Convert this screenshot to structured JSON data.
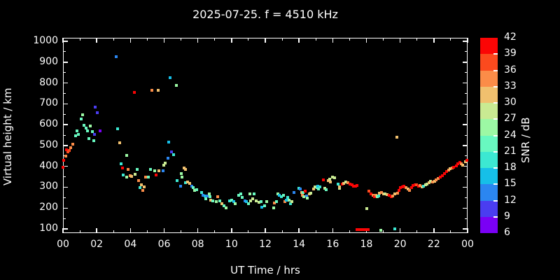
{
  "header": {
    "title": "2025-07-25. f = 4510 kHz"
  },
  "colorbar": {
    "label": "SNR / dB",
    "ticks": [
      6,
      9,
      12,
      15,
      18,
      21,
      24,
      27,
      30,
      33,
      36,
      39,
      42
    ]
  },
  "chart_data": {
    "type": "scatter",
    "title": "2025-07-25. f = 4510 kHz",
    "xlabel": "UT Time / hrs",
    "ylabel": "Virtual height / km",
    "xlim": [
      0,
      24
    ],
    "ylim": [
      80,
      1017
    ],
    "grid": false,
    "x_ticks": [
      0,
      2,
      4,
      6,
      8,
      10,
      12,
      14,
      16,
      18,
      20,
      22,
      24
    ],
    "x_tick_labels": [
      "00",
      "02",
      "04",
      "06",
      "08",
      "10",
      "12",
      "14",
      "16",
      "18",
      "20",
      "22",
      "00"
    ],
    "x_minor_ticks": [
      1,
      3,
      5,
      7,
      9,
      11,
      13,
      15,
      17,
      19,
      21,
      23
    ],
    "y_ticks": [
      100,
      200,
      300,
      400,
      500,
      600,
      700,
      800,
      900,
      1000
    ],
    "y_tick_labels": [
      "100",
      "200",
      "300",
      "400",
      "500",
      "600",
      "700",
      "800",
      "900",
      "1000"
    ],
    "y_minor_ticks": [
      150,
      250,
      350,
      450,
      550,
      650,
      750,
      850,
      950
    ],
    "snr_scale": {
      "min": 6,
      "max": 42,
      "step": 3,
      "colors": [
        "#7a00f5",
        "#4a3df0",
        "#2b86f0",
        "#16bfe8",
        "#3ce8d2",
        "#68f8c0",
        "#9cf8a4",
        "#c9ea92",
        "#f0c06e",
        "#fb8c48",
        "#fb4a1e",
        "#fb0505"
      ]
    },
    "points_format": [
      "ut_hours",
      "virtual_height_km",
      "snr_db"
    ],
    "points": [
      [
        0.02,
        397,
        41
      ],
      [
        0.05,
        428,
        41
      ],
      [
        0.17,
        450,
        34
      ],
      [
        0.21,
        481,
        41
      ],
      [
        0.3,
        468,
        38
      ],
      [
        0.38,
        475,
        38
      ],
      [
        0.45,
        490,
        34
      ],
      [
        0.58,
        507,
        34
      ],
      [
        0.76,
        546,
        22
      ],
      [
        0.83,
        571,
        22
      ],
      [
        0.9,
        555,
        22
      ],
      [
        1.07,
        629,
        22
      ],
      [
        1.18,
        649,
        25
      ],
      [
        1.25,
        597,
        22
      ],
      [
        1.35,
        585,
        22
      ],
      [
        1.46,
        571,
        22
      ],
      [
        1.53,
        532,
        22
      ],
      [
        1.6,
        594,
        25
      ],
      [
        1.74,
        566,
        22
      ],
      [
        1.81,
        524,
        22
      ],
      [
        1.85,
        552,
        10
      ],
      [
        1.92,
        685,
        10
      ],
      [
        2.02,
        658,
        10
      ],
      [
        2.22,
        571,
        7
      ],
      [
        3.17,
        926,
        13
      ],
      [
        3.23,
        582,
        19
      ],
      [
        3.38,
        513,
        31
      ],
      [
        3.44,
        413,
        19
      ],
      [
        3.52,
        391,
        41
      ],
      [
        3.58,
        358,
        19
      ],
      [
        3.76,
        350,
        25
      ],
      [
        3.78,
        452,
        25
      ],
      [
        3.87,
        385,
        34
      ],
      [
        3.97,
        355,
        34
      ],
      [
        4.08,
        352,
        31
      ],
      [
        4.25,
        754,
        41
      ],
      [
        4.27,
        363,
        28
      ],
      [
        4.42,
        385,
        22
      ],
      [
        4.48,
        333,
        34
      ],
      [
        4.56,
        298,
        19
      ],
      [
        4.66,
        311,
        31
      ],
      [
        4.73,
        284,
        34
      ],
      [
        4.8,
        302,
        31
      ],
      [
        4.9,
        350,
        34
      ],
      [
        5.08,
        350,
        22
      ],
      [
        5.19,
        385,
        22
      ],
      [
        5.29,
        765,
        34
      ],
      [
        5.43,
        380,
        25
      ],
      [
        5.52,
        359,
        41
      ],
      [
        5.66,
        765,
        31
      ],
      [
        5.68,
        380,
        31
      ],
      [
        5.94,
        378,
        13
      ],
      [
        5.98,
        405,
        28
      ],
      [
        6.05,
        416,
        28
      ],
      [
        6.22,
        441,
        13
      ],
      [
        6.29,
        516,
        16
      ],
      [
        6.37,
        826,
        16
      ],
      [
        6.44,
        468,
        10
      ],
      [
        6.57,
        455,
        19
      ],
      [
        6.71,
        787,
        25
      ],
      [
        6.75,
        333,
        19
      ],
      [
        6.96,
        306,
        13
      ],
      [
        7.03,
        364,
        25
      ],
      [
        7.05,
        350,
        25
      ],
      [
        7.17,
        394,
        31
      ],
      [
        7.26,
        386,
        31
      ],
      [
        7.28,
        322,
        19
      ],
      [
        7.4,
        325,
        31
      ],
      [
        7.51,
        320,
        31
      ],
      [
        7.62,
        306,
        13
      ],
      [
        7.72,
        298,
        22
      ],
      [
        7.82,
        284,
        25
      ],
      [
        7.93,
        289,
        22
      ],
      [
        8.21,
        276,
        19
      ],
      [
        8.32,
        262,
        13
      ],
      [
        8.42,
        258,
        16
      ],
      [
        8.49,
        245,
        22
      ],
      [
        8.56,
        258,
        13
      ],
      [
        8.66,
        269,
        25
      ],
      [
        8.7,
        256,
        22
      ],
      [
        8.77,
        239,
        31
      ],
      [
        8.9,
        236,
        22
      ],
      [
        9.11,
        231,
        25
      ],
      [
        9.18,
        254,
        34
      ],
      [
        9.32,
        236,
        22
      ],
      [
        9.43,
        222,
        31
      ],
      [
        9.53,
        211,
        22
      ],
      [
        9.67,
        200,
        25
      ],
      [
        9.9,
        236,
        19
      ],
      [
        10.02,
        239,
        22
      ],
      [
        10.13,
        231,
        16
      ],
      [
        10.22,
        222,
        25
      ],
      [
        10.43,
        262,
        22
      ],
      [
        10.55,
        269,
        22
      ],
      [
        10.64,
        251,
        22
      ],
      [
        10.78,
        236,
        13
      ],
      [
        10.88,
        231,
        16
      ],
      [
        10.99,
        222,
        22
      ],
      [
        11.1,
        267,
        25
      ],
      [
        11.13,
        236,
        28
      ],
      [
        11.27,
        243,
        28
      ],
      [
        11.34,
        267,
        22
      ],
      [
        11.48,
        233,
        28
      ],
      [
        11.62,
        228,
        28
      ],
      [
        11.76,
        231,
        22
      ],
      [
        11.8,
        203,
        16
      ],
      [
        11.97,
        211,
        22
      ],
      [
        12.08,
        231,
        25
      ],
      [
        12.49,
        200,
        25
      ],
      [
        12.52,
        224,
        34
      ],
      [
        12.66,
        231,
        22
      ],
      [
        12.73,
        267,
        25
      ],
      [
        12.82,
        262,
        16
      ],
      [
        12.94,
        256,
        19
      ],
      [
        13.08,
        262,
        22
      ],
      [
        13.15,
        231,
        34
      ],
      [
        13.25,
        239,
        16
      ],
      [
        13.33,
        251,
        19
      ],
      [
        13.43,
        239,
        25
      ],
      [
        13.5,
        222,
        19
      ],
      [
        13.56,
        231,
        28
      ],
      [
        13.7,
        276,
        13
      ],
      [
        14.01,
        294,
        19
      ],
      [
        14.09,
        291,
        13
      ],
      [
        14.15,
        276,
        31
      ],
      [
        14.19,
        262,
        34
      ],
      [
        14.26,
        276,
        22
      ],
      [
        14.28,
        256,
        25
      ],
      [
        14.37,
        280,
        41
      ],
      [
        14.43,
        258,
        13
      ],
      [
        14.48,
        247,
        25
      ],
      [
        14.61,
        267,
        31
      ],
      [
        14.7,
        272,
        28
      ],
      [
        14.85,
        291,
        31
      ],
      [
        14.96,
        302,
        28
      ],
      [
        15.07,
        297,
        22
      ],
      [
        15.12,
        305,
        16
      ],
      [
        15.17,
        291,
        22
      ],
      [
        15.24,
        302,
        19
      ],
      [
        15.44,
        335,
        41
      ],
      [
        15.54,
        294,
        28
      ],
      [
        15.63,
        289,
        22
      ],
      [
        15.72,
        333,
        31
      ],
      [
        15.82,
        338,
        28
      ],
      [
        15.86,
        324,
        31
      ],
      [
        16.0,
        350,
        28
      ],
      [
        16.11,
        346,
        28
      ],
      [
        16.32,
        316,
        19
      ],
      [
        16.39,
        294,
        28
      ],
      [
        16.42,
        302,
        31
      ],
      [
        16.56,
        316,
        41
      ],
      [
        16.65,
        320,
        31
      ],
      [
        16.79,
        324,
        28
      ],
      [
        16.9,
        322,
        34
      ],
      [
        17.04,
        316,
        41
      ],
      [
        17.15,
        313,
        41
      ],
      [
        17.25,
        305,
        41
      ],
      [
        17.35,
        304,
        41
      ],
      [
        17.46,
        308,
        41
      ],
      [
        17.45,
        97,
        41
      ],
      [
        17.58,
        97,
        41
      ],
      [
        17.71,
        97,
        41
      ],
      [
        17.84,
        97,
        41
      ],
      [
        17.97,
        97,
        41
      ],
      [
        18.1,
        97,
        41
      ],
      [
        18.04,
        199,
        28
      ],
      [
        18.87,
        95,
        25
      ],
      [
        19.68,
        100,
        19
      ],
      [
        18.15,
        283,
        38
      ],
      [
        18.26,
        267,
        41
      ],
      [
        18.4,
        262,
        34
      ],
      [
        18.49,
        256,
        41
      ],
      [
        18.57,
        262,
        34
      ],
      [
        18.63,
        258,
        31
      ],
      [
        18.66,
        254,
        25
      ],
      [
        18.74,
        258,
        19
      ],
      [
        18.77,
        272,
        31
      ],
      [
        18.91,
        276,
        34
      ],
      [
        19.01,
        269,
        31
      ],
      [
        19.12,
        267,
        28
      ],
      [
        19.23,
        265,
        31
      ],
      [
        19.33,
        262,
        41
      ],
      [
        19.47,
        256,
        41
      ],
      [
        19.57,
        258,
        34
      ],
      [
        19.68,
        267,
        31
      ],
      [
        19.8,
        541,
        31
      ],
      [
        19.84,
        272,
        34
      ],
      [
        19.93,
        286,
        41
      ],
      [
        20.03,
        297,
        41
      ],
      [
        20.13,
        302,
        41
      ],
      [
        20.24,
        305,
        41
      ],
      [
        20.35,
        297,
        34
      ],
      [
        20.45,
        291,
        31
      ],
      [
        20.55,
        286,
        34
      ],
      [
        20.66,
        297,
        41
      ],
      [
        20.77,
        308,
        41
      ],
      [
        20.87,
        313,
        41
      ],
      [
        20.97,
        311,
        38
      ],
      [
        21.08,
        305,
        41
      ],
      [
        21.19,
        308,
        34
      ],
      [
        21.29,
        302,
        31
      ],
      [
        21.38,
        305,
        19
      ],
      [
        21.49,
        311,
        28
      ],
      [
        21.6,
        316,
        28
      ],
      [
        21.71,
        322,
        31
      ],
      [
        21.8,
        330,
        28
      ],
      [
        21.92,
        324,
        34
      ],
      [
        22.03,
        327,
        31
      ],
      [
        22.13,
        335,
        34
      ],
      [
        22.27,
        341,
        34
      ],
      [
        22.36,
        349,
        41
      ],
      [
        22.5,
        357,
        41
      ],
      [
        22.61,
        366,
        41
      ],
      [
        22.75,
        377,
        41
      ],
      [
        22.86,
        382,
        34
      ],
      [
        22.96,
        388,
        31
      ],
      [
        23.09,
        394,
        34
      ],
      [
        23.19,
        397,
        41
      ],
      [
        23.32,
        401,
        41
      ],
      [
        23.43,
        412,
        41
      ],
      [
        23.54,
        419,
        41
      ],
      [
        23.63,
        412,
        34
      ],
      [
        23.73,
        407,
        31
      ],
      [
        23.87,
        423,
        31
      ],
      [
        23.97,
        430,
        41
      ]
    ]
  }
}
